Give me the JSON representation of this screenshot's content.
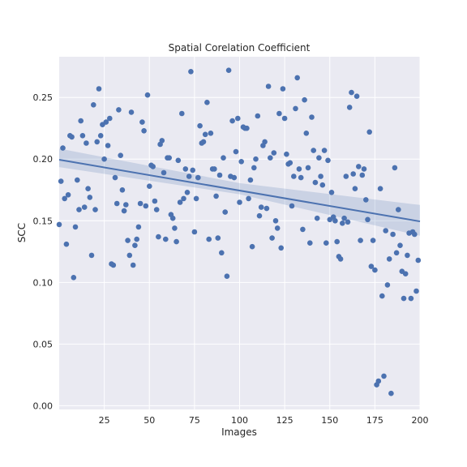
{
  "chart_data": {
    "type": "scatter",
    "title": "Spatial Corelation Coefficient",
    "xlabel": "Images",
    "ylabel": "SCC",
    "xlim": [
      0,
      200
    ],
    "ylim": [
      -0.003,
      0.283
    ],
    "x_ticks": [
      25,
      50,
      75,
      100,
      125,
      150,
      175,
      200
    ],
    "x_tick_labels": [
      "25",
      "50",
      "75",
      "100",
      "125",
      "150",
      "175",
      "200"
    ],
    "y_ticks": [
      0.0,
      0.05,
      0.1,
      0.15,
      0.2,
      0.25
    ],
    "y_tick_labels": [
      "0.00",
      "0.05",
      "0.10",
      "0.15",
      "0.20",
      "0.25"
    ],
    "grid": true,
    "background_color": "#eaeaf2",
    "point_color": "#4c72b0",
    "regression": {
      "intercept": 0.1995,
      "slope": -0.00025,
      "ci_start": [
        0.1935,
        0.2085
      ],
      "ci_mid": [
        0.1715,
        0.1805
      ],
      "ci_end": [
        0.1378,
        0.1628
      ]
    },
    "points": [
      [
        0,
        0.147
      ],
      [
        1,
        0.182
      ],
      [
        2,
        0.209
      ],
      [
        3,
        0.168
      ],
      [
        4,
        0.131
      ],
      [
        5,
        0.171
      ],
      [
        6,
        0.219
      ],
      [
        7,
        0.218
      ],
      [
        8,
        0.104
      ],
      [
        9,
        0.145
      ],
      [
        10,
        0.183
      ],
      [
        11,
        0.159
      ],
      [
        12,
        0.231
      ],
      [
        13,
        0.219
      ],
      [
        14,
        0.161
      ],
      [
        15,
        0.213
      ],
      [
        16,
        0.176
      ],
      [
        17,
        0.169
      ],
      [
        18,
        0.122
      ],
      [
        19,
        0.244
      ],
      [
        20,
        0.159
      ],
      [
        21,
        0.214
      ],
      [
        22,
        0.257
      ],
      [
        23,
        0.219
      ],
      [
        24,
        0.228
      ],
      [
        25,
        0.2
      ],
      [
        26,
        0.23
      ],
      [
        27,
        0.211
      ],
      [
        28,
        0.233
      ],
      [
        29,
        0.115
      ],
      [
        30,
        0.114
      ],
      [
        31,
        0.185
      ],
      [
        32,
        0.164
      ],
      [
        33,
        0.24
      ],
      [
        34,
        0.203
      ],
      [
        35,
        0.175
      ],
      [
        36,
        0.158
      ],
      [
        37,
        0.163
      ],
      [
        38,
        0.134
      ],
      [
        39,
        0.122
      ],
      [
        40,
        0.238
      ],
      [
        41,
        0.114
      ],
      [
        42,
        0.13
      ],
      [
        43,
        0.135
      ],
      [
        44,
        0.145
      ],
      [
        45,
        0.164
      ],
      [
        46,
        0.23
      ],
      [
        47,
        0.223
      ],
      [
        48,
        0.162
      ],
      [
        49,
        0.252
      ],
      [
        50,
        0.178
      ],
      [
        51,
        0.195
      ],
      [
        52,
        0.194
      ],
      [
        53,
        0.166
      ],
      [
        54,
        0.159
      ],
      [
        55,
        0.137
      ],
      [
        56,
        0.212
      ],
      [
        57,
        0.215
      ],
      [
        58,
        0.189
      ],
      [
        59,
        0.135
      ],
      [
        60,
        0.201
      ],
      [
        61,
        0.201
      ],
      [
        62,
        0.155
      ],
      [
        63,
        0.152
      ],
      [
        64,
        0.144
      ],
      [
        65,
        0.133
      ],
      [
        66,
        0.199
      ],
      [
        67,
        0.165
      ],
      [
        68,
        0.237
      ],
      [
        69,
        0.168
      ],
      [
        70,
        0.192
      ],
      [
        71,
        0.173
      ],
      [
        72,
        0.186
      ],
      [
        73,
        0.271
      ],
      [
        74,
        0.191
      ],
      [
        75,
        0.141
      ],
      [
        76,
        0.168
      ],
      [
        77,
        0.185
      ],
      [
        78,
        0.227
      ],
      [
        79,
        0.213
      ],
      [
        80,
        0.214
      ],
      [
        81,
        0.22
      ],
      [
        82,
        0.246
      ],
      [
        83,
        0.135
      ],
      [
        84,
        0.221
      ],
      [
        85,
        0.192
      ],
      [
        86,
        0.192
      ],
      [
        87,
        0.17
      ],
      [
        88,
        0.136
      ],
      [
        89,
        0.187
      ],
      [
        90,
        0.124
      ],
      [
        91,
        0.201
      ],
      [
        92,
        0.157
      ],
      [
        93,
        0.105
      ],
      [
        94,
        0.272
      ],
      [
        95,
        0.186
      ],
      [
        96,
        0.231
      ],
      [
        97,
        0.185
      ],
      [
        98,
        0.206
      ],
      [
        99,
        0.233
      ],
      [
        100,
        0.165
      ],
      [
        101,
        0.198
      ],
      [
        102,
        0.226
      ],
      [
        103,
        0.225
      ],
      [
        104,
        0.225
      ],
      [
        105,
        0.168
      ],
      [
        106,
        0.183
      ],
      [
        107,
        0.129
      ],
      [
        108,
        0.193
      ],
      [
        109,
        0.2
      ],
      [
        110,
        0.235
      ],
      [
        111,
        0.154
      ],
      [
        112,
        0.161
      ],
      [
        113,
        0.211
      ],
      [
        114,
        0.214
      ],
      [
        115,
        0.16
      ],
      [
        116,
        0.259
      ],
      [
        117,
        0.201
      ],
      [
        118,
        0.136
      ],
      [
        119,
        0.205
      ],
      [
        120,
        0.15
      ],
      [
        121,
        0.144
      ],
      [
        122,
        0.237
      ],
      [
        123,
        0.128
      ],
      [
        124,
        0.257
      ],
      [
        125,
        0.233
      ],
      [
        126,
        0.204
      ],
      [
        127,
        0.196
      ],
      [
        128,
        0.197
      ],
      [
        129,
        0.162
      ],
      [
        130,
        0.186
      ],
      [
        131,
        0.241
      ],
      [
        132,
        0.266
      ],
      [
        133,
        0.192
      ],
      [
        134,
        0.185
      ],
      [
        135,
        0.143
      ],
      [
        136,
        0.248
      ],
      [
        137,
        0.221
      ],
      [
        138,
        0.193
      ],
      [
        139,
        0.132
      ],
      [
        140,
        0.234
      ],
      [
        141,
        0.207
      ],
      [
        142,
        0.181
      ],
      [
        143,
        0.152
      ],
      [
        144,
        0.201
      ],
      [
        145,
        0.186
      ],
      [
        146,
        0.179
      ],
      [
        147,
        0.207
      ],
      [
        148,
        0.132
      ],
      [
        149,
        0.199
      ],
      [
        150,
        0.151
      ],
      [
        151,
        0.173
      ],
      [
        152,
        0.153
      ],
      [
        153,
        0.15
      ],
      [
        154,
        0.133
      ],
      [
        155,
        0.121
      ],
      [
        156,
        0.119
      ],
      [
        157,
        0.148
      ],
      [
        158,
        0.152
      ],
      [
        159,
        0.186
      ],
      [
        160,
        0.149
      ],
      [
        161,
        0.242
      ],
      [
        162,
        0.254
      ],
      [
        163,
        0.188
      ],
      [
        164,
        0.176
      ],
      [
        165,
        0.251
      ],
      [
        166,
        0.194
      ],
      [
        167,
        0.134
      ],
      [
        168,
        0.187
      ],
      [
        169,
        0.192
      ],
      [
        170,
        0.167
      ],
      [
        171,
        0.151
      ],
      [
        172,
        0.222
      ],
      [
        173,
        0.113
      ],
      [
        174,
        0.134
      ],
      [
        175,
        0.11
      ],
      [
        176,
        0.017
      ],
      [
        177,
        0.02
      ],
      [
        178,
        0.176
      ],
      [
        179,
        0.089
      ],
      [
        180,
        0.024
      ],
      [
        181,
        0.142
      ],
      [
        182,
        0.098
      ],
      [
        183,
        0.119
      ],
      [
        184,
        0.01
      ],
      [
        185,
        0.139
      ],
      [
        186,
        0.193
      ],
      [
        187,
        0.124
      ],
      [
        188,
        0.159
      ],
      [
        189,
        0.13
      ],
      [
        190,
        0.109
      ],
      [
        191,
        0.087
      ],
      [
        192,
        0.107
      ],
      [
        193,
        0.122
      ],
      [
        194,
        0.14
      ],
      [
        195,
        0.087
      ],
      [
        196,
        0.141
      ],
      [
        197,
        0.139
      ],
      [
        198,
        0.093
      ],
      [
        199,
        0.118
      ]
    ]
  }
}
